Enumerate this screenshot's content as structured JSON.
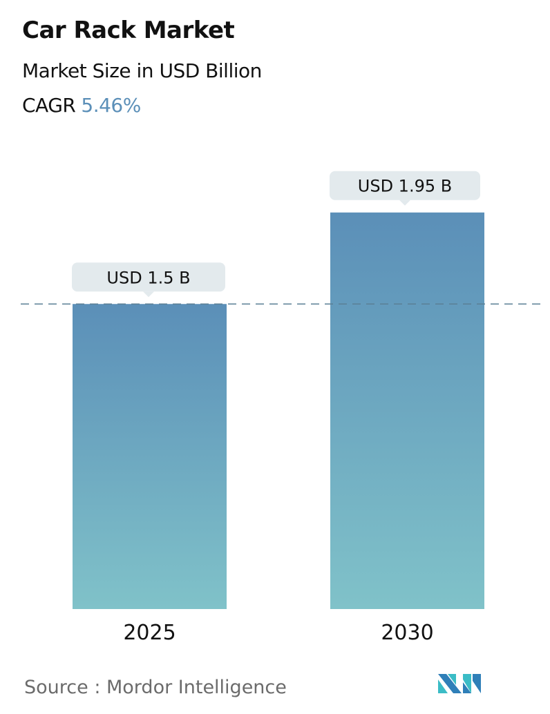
{
  "header": {
    "title": "Car Rack Market",
    "subtitle": "Market Size in USD Billion",
    "cagr_label": "CAGR",
    "cagr_value": "5.46%"
  },
  "chart_data": {
    "type": "bar",
    "categories": [
      "2025",
      "2030"
    ],
    "values": [
      1.5,
      1.95
    ],
    "data_labels": [
      "USD 1.5 B",
      "USD 1.95 B"
    ],
    "reference_line": {
      "value": 1.5,
      "style": "dashed"
    },
    "grid": false,
    "colors": {
      "bar_top": "#5b8fb8",
      "bar_bottom": "#80c2c9",
      "label_bg": "#e3eaed",
      "reference_line": "#5a7f95"
    }
  },
  "footer": {
    "source": "Source :  Mordor Intelligence",
    "logo": "Mordor Intelligence logo"
  }
}
